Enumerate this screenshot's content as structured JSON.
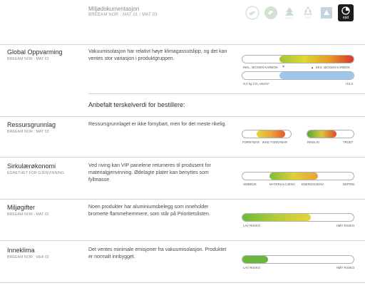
{
  "header": {
    "title": "Miljødokumentasjon",
    "subtitle": "BREEAM NOR : MAT 01 / MAT 03",
    "logos": [
      {
        "name": "swan-eco-label",
        "faint": true
      },
      {
        "name": "eu-ecolabel",
        "faint": true
      },
      {
        "name": "pefc",
        "faint": true,
        "text": "PEFC"
      },
      {
        "name": "fsc",
        "faint": true,
        "text": "FSC"
      },
      {
        "name": "byggvare-label",
        "faint": true
      },
      {
        "name": "epd",
        "faint": false,
        "text": "epd"
      }
    ]
  },
  "rows": {
    "global": {
      "title": "Global Oppvarming",
      "subtitle": "BREEAM NOR : MAT 01",
      "description": "Vakuumisolasjon har relativt høye klimagassutslipp, og det kan ventes stor variasjon i produktgruppen.",
      "scale_labels": [
        "INKL. BIOGEN KARBON",
        "EKS. BIOGEN KARBON"
      ],
      "axis_min_label": "-5,0 kg CO₂-ekv/m²",
      "axis_max_label": "+15,0",
      "arrow": "▼",
      "cross": "▲",
      "gradient": [
        "#9fc63a",
        "#dcd930",
        "#e89a2a",
        "#d7372a"
      ],
      "bar2_fill": "#9ec6ea"
    },
    "anbefalt": "Anbefalt terskelverdi for bestillere:",
    "ressurs": {
      "title": "Ressursgrunnlag",
      "subtitle": "BREEAM NOR : MAT 03",
      "description": "Ressursgrunnlaget er ikke fornybart, men for det meste rikelig.",
      "labels": [
        "FORNYBAR",
        "IKKE FORNYBAR",
        "RIKELIG",
        "TRUET"
      ],
      "gradient_a": [
        "#e2d53a",
        "#eea63a",
        "#e55a2d"
      ],
      "gradient_b": [
        "#57a83b",
        "#d8c73b",
        "#e14a2e"
      ]
    },
    "sirkul": {
      "title": "Sirkulærøkonomi",
      "subtitle": "EGNETHET FOR GJENVINNING",
      "description": "Ved riving kan VIP panelene returneres til produsent for materialgjenvinning. Ødelagte plater kan benyttes som fyllmasse.",
      "labels": [
        "OMBRUK",
        "MATERIALGJENV.",
        "ENERGIGJENV.",
        "DEPONI"
      ],
      "gradient": [
        "#7bbd3a",
        "#e2cf39",
        "#e9a23a"
      ]
    },
    "miljogifter": {
      "title": "Miljøgifter",
      "subtitle": "BREEAM NOR : MAT 02",
      "description": "Noen produkter har aluminiumsbelegg som inneholder bromerte flammehemmere, som står på Prioritetslisten.",
      "labels": [
        "LAV RISIKO",
        "HØY RISIKO"
      ],
      "gradient": [
        "#6cb93b",
        "#b7cc39",
        "#e6d43a"
      ]
    },
    "inneklima": {
      "title": "Inneklima",
      "subtitle": "BREEAM NOR : HEA 02",
      "description": "Det ventes minimale emisjoner fra vakuumisolasjon. Produktet er normalt innbygget.",
      "labels": [
        "LAV RISIKO",
        "HØY RISIKO"
      ],
      "fill": "#6ab53c"
    }
  }
}
